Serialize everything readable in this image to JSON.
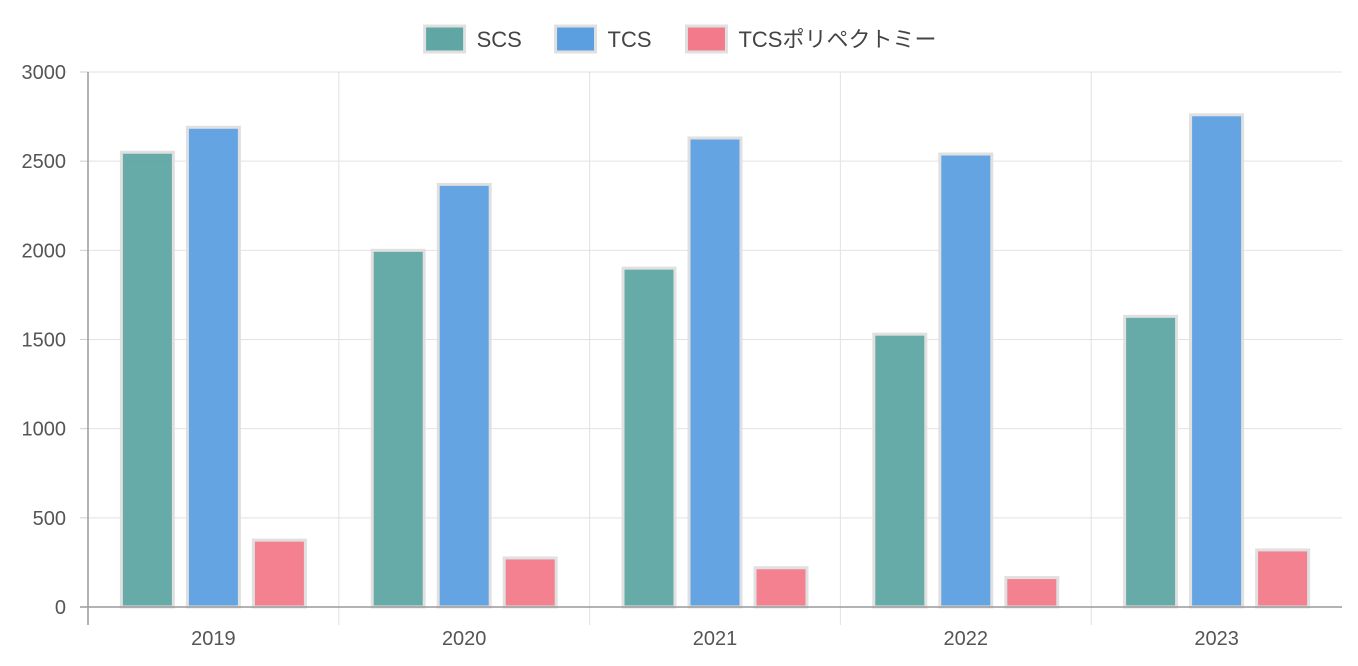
{
  "chart_data": {
    "type": "bar",
    "categories": [
      "2019",
      "2020",
      "2021",
      "2022",
      "2023"
    ],
    "series": [
      {
        "name": "SCS",
        "color": "#5fa6a4",
        "values": [
          2550,
          2000,
          1900,
          1530,
          1630
        ]
      },
      {
        "name": "TCS",
        "color": "#5c9fe0",
        "values": [
          2690,
          2370,
          2630,
          2540,
          2760
        ]
      },
      {
        "name": "TCSポリペクトミー",
        "color": "#f27a8a",
        "values": [
          375,
          275,
          220,
          165,
          320
        ]
      }
    ],
    "ylim": [
      0,
      3000
    ],
    "yticks": [
      "0",
      "500",
      "1000",
      "1500",
      "2000",
      "2500",
      "3000"
    ],
    "grid": true,
    "legend_position": "top"
  }
}
